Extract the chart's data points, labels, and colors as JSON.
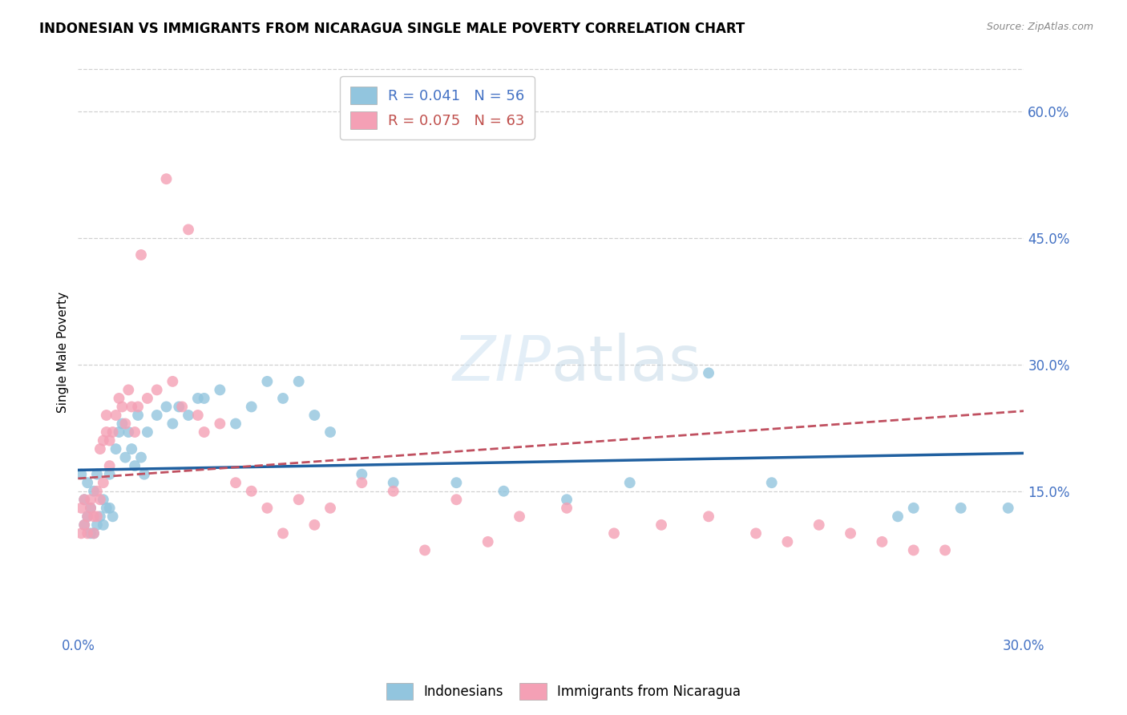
{
  "title": "INDONESIAN VS IMMIGRANTS FROM NICARAGUA SINGLE MALE POVERTY CORRELATION CHART",
  "source": "Source: ZipAtlas.com",
  "ylabel": "Single Male Poverty",
  "yticks_right": [
    "15.0%",
    "30.0%",
    "45.0%",
    "60.0%"
  ],
  "yticks_right_vals": [
    0.15,
    0.3,
    0.45,
    0.6
  ],
  "xlim": [
    0.0,
    0.3
  ],
  "ylim": [
    -0.02,
    0.65
  ],
  "color_blue": "#92c5de",
  "color_pink": "#f4a0b5",
  "color_line_blue": "#2060a0",
  "color_line_pink": "#c05060",
  "series1_label": "Indonesians",
  "series2_label": "Immigrants from Nicaragua",
  "indonesian_x": [
    0.001,
    0.002,
    0.002,
    0.003,
    0.003,
    0.004,
    0.004,
    0.005,
    0.005,
    0.006,
    0.006,
    0.007,
    0.008,
    0.008,
    0.009,
    0.01,
    0.01,
    0.011,
    0.012,
    0.013,
    0.014,
    0.015,
    0.016,
    0.017,
    0.018,
    0.019,
    0.02,
    0.021,
    0.022,
    0.025,
    0.028,
    0.03,
    0.032,
    0.035,
    0.038,
    0.04,
    0.045,
    0.05,
    0.055,
    0.06,
    0.065,
    0.07,
    0.075,
    0.08,
    0.09,
    0.1,
    0.12,
    0.135,
    0.155,
    0.175,
    0.2,
    0.22,
    0.26,
    0.265,
    0.28,
    0.295
  ],
  "indonesian_y": [
    0.17,
    0.14,
    0.11,
    0.16,
    0.12,
    0.13,
    0.1,
    0.15,
    0.1,
    0.11,
    0.17,
    0.12,
    0.14,
    0.11,
    0.13,
    0.17,
    0.13,
    0.12,
    0.2,
    0.22,
    0.23,
    0.19,
    0.22,
    0.2,
    0.18,
    0.24,
    0.19,
    0.17,
    0.22,
    0.24,
    0.25,
    0.23,
    0.25,
    0.24,
    0.26,
    0.26,
    0.27,
    0.23,
    0.25,
    0.28,
    0.26,
    0.28,
    0.24,
    0.22,
    0.17,
    0.16,
    0.16,
    0.15,
    0.14,
    0.16,
    0.29,
    0.16,
    0.12,
    0.13,
    0.13,
    0.13
  ],
  "nicaragua_x": [
    0.001,
    0.001,
    0.002,
    0.002,
    0.003,
    0.003,
    0.004,
    0.004,
    0.005,
    0.005,
    0.006,
    0.006,
    0.007,
    0.007,
    0.008,
    0.008,
    0.009,
    0.009,
    0.01,
    0.01,
    0.011,
    0.012,
    0.013,
    0.014,
    0.015,
    0.016,
    0.017,
    0.018,
    0.019,
    0.02,
    0.022,
    0.025,
    0.028,
    0.03,
    0.033,
    0.035,
    0.038,
    0.04,
    0.045,
    0.05,
    0.055,
    0.06,
    0.065,
    0.07,
    0.075,
    0.08,
    0.09,
    0.1,
    0.11,
    0.12,
    0.13,
    0.14,
    0.155,
    0.17,
    0.185,
    0.2,
    0.215,
    0.225,
    0.235,
    0.245,
    0.255,
    0.265,
    0.275
  ],
  "nicaragua_y": [
    0.13,
    0.1,
    0.14,
    0.11,
    0.12,
    0.1,
    0.13,
    0.14,
    0.12,
    0.1,
    0.15,
    0.12,
    0.14,
    0.2,
    0.16,
    0.21,
    0.22,
    0.24,
    0.18,
    0.21,
    0.22,
    0.24,
    0.26,
    0.25,
    0.23,
    0.27,
    0.25,
    0.22,
    0.25,
    0.43,
    0.26,
    0.27,
    0.52,
    0.28,
    0.25,
    0.46,
    0.24,
    0.22,
    0.23,
    0.16,
    0.15,
    0.13,
    0.1,
    0.14,
    0.11,
    0.13,
    0.16,
    0.15,
    0.08,
    0.14,
    0.09,
    0.12,
    0.13,
    0.1,
    0.11,
    0.12,
    0.1,
    0.09,
    0.11,
    0.1,
    0.09,
    0.08,
    0.08
  ]
}
